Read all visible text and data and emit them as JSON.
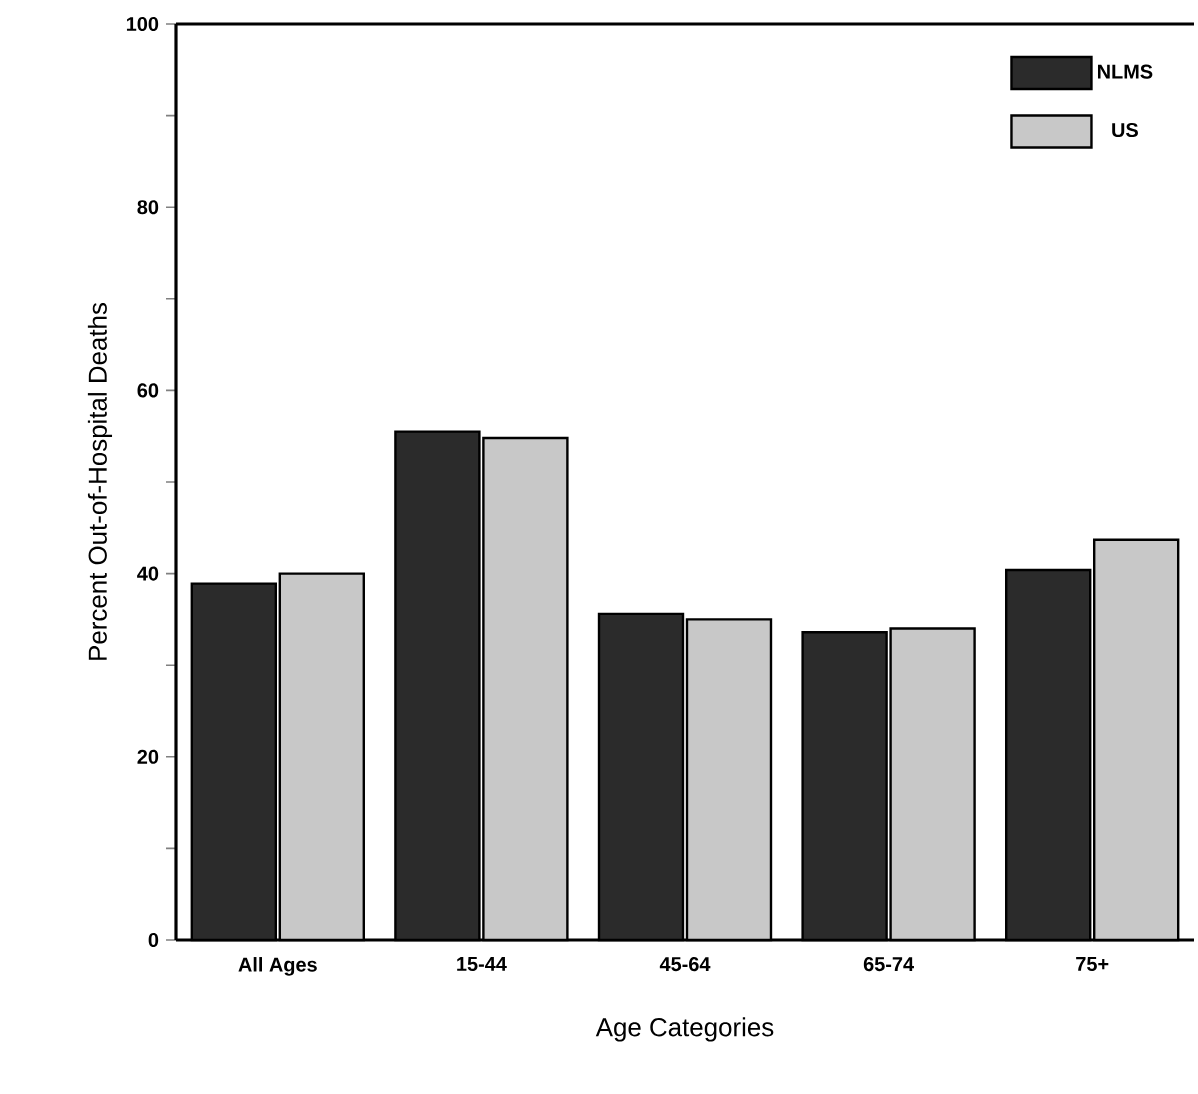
{
  "chart_data": {
    "type": "bar",
    "xlabel": "Age Categories",
    "ylabel": "Percent Out-of-Hospital Deaths",
    "categories": [
      "All Ages",
      "15-44",
      "45-64",
      "65-74",
      "75+"
    ],
    "series": [
      {
        "name": "NLMS",
        "color": "#2b2b2b",
        "values": [
          38.9,
          55.5,
          35.6,
          33.6,
          40.4
        ]
      },
      {
        "name": "US",
        "color": "#c8c8c8",
        "values": [
          40,
          54.8,
          35,
          34,
          43.7
        ]
      }
    ],
    "ylim": [
      0,
      100
    ],
    "yticks": [
      0,
      {
        "value": 10,
        "label": null
      },
      20,
      {
        "value": 30,
        "label": null
      },
      40,
      {
        "value": 50,
        "label": null
      },
      60,
      {
        "value": 70,
        "label": null
      },
      80,
      {
        "value": 90,
        "label": null
      },
      100
    ],
    "legend": "top right",
    "grid": false
  }
}
